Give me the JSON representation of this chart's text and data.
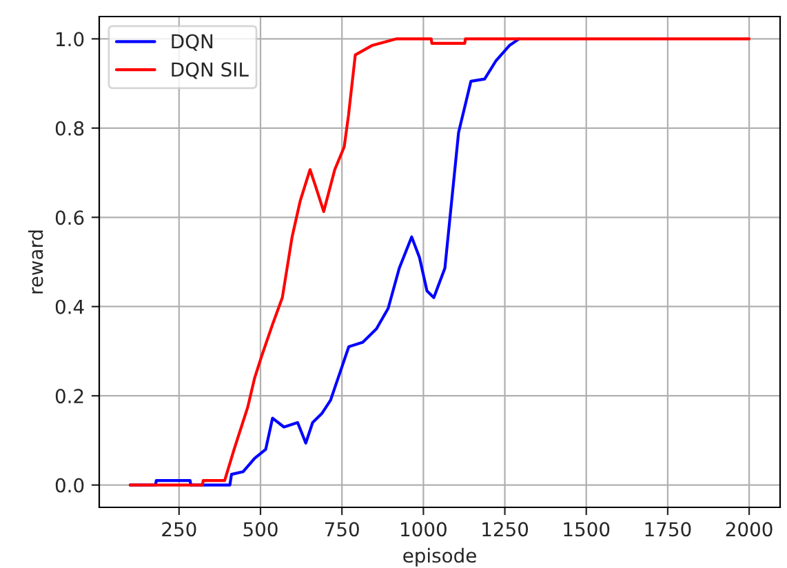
{
  "chart_data": {
    "type": "line",
    "xlabel": "episode",
    "ylabel": "reward",
    "xlim": [
      5,
      2095
    ],
    "ylim": [
      -0.05,
      1.05
    ],
    "xticks": [
      250,
      500,
      750,
      1000,
      1250,
      1500,
      1750,
      2000
    ],
    "yticks": [
      {
        "value": 0,
        "label": "0.0"
      },
      {
        "value": 0.2,
        "label": "0.2"
      },
      {
        "value": 0.4,
        "label": "0.4"
      },
      {
        "value": 0.6,
        "label": "0.6"
      },
      {
        "value": 0.8,
        "label": "0.8"
      },
      {
        "value": 1,
        "label": "1.0"
      }
    ],
    "grid": true,
    "legend": "top left",
    "series": [
      {
        "name": "DQN",
        "color": "#0000ff",
        "x": [
          100,
          178,
          180,
          284,
          286,
          406,
          411,
          447,
          482,
          516,
          537,
          572,
          614,
          639,
          660,
          688,
          715,
          743,
          771,
          814,
          856,
          892,
          926,
          964,
          988,
          1011,
          1032,
          1066,
          1108,
          1146,
          1188,
          1222,
          1264,
          1294
        ],
        "values": [
          0,
          0,
          0.01,
          0.01,
          0,
          0,
          0.024,
          0.03,
          0.06,
          0.08,
          0.15,
          0.13,
          0.14,
          0.094,
          0.14,
          0.16,
          0.19,
          0.25,
          0.31,
          0.32,
          0.35,
          0.396,
          0.486,
          0.556,
          0.51,
          0.435,
          0.42,
          0.486,
          0.79,
          0.905,
          0.91,
          0.95,
          0.985,
          1.0
        ]
      },
      {
        "name": "DQN SIL",
        "color": "#ff0000",
        "x": [
          100,
          322,
          324,
          390,
          419,
          461,
          482,
          504,
          537,
          567,
          597,
          622,
          652,
          668,
          694,
          728,
          757,
          770,
          791,
          842,
          918,
          1024,
          1026,
          1127,
          1129,
          2000
        ],
        "values": [
          0,
          0,
          0.01,
          0.01,
          0.08,
          0.175,
          0.24,
          0.29,
          0.36,
          0.42,
          0.556,
          0.637,
          0.707,
          0.672,
          0.613,
          0.707,
          0.758,
          0.828,
          0.964,
          0.985,
          1.0,
          1.0,
          0.99,
          0.99,
          1.0,
          1.0
        ]
      }
    ]
  }
}
